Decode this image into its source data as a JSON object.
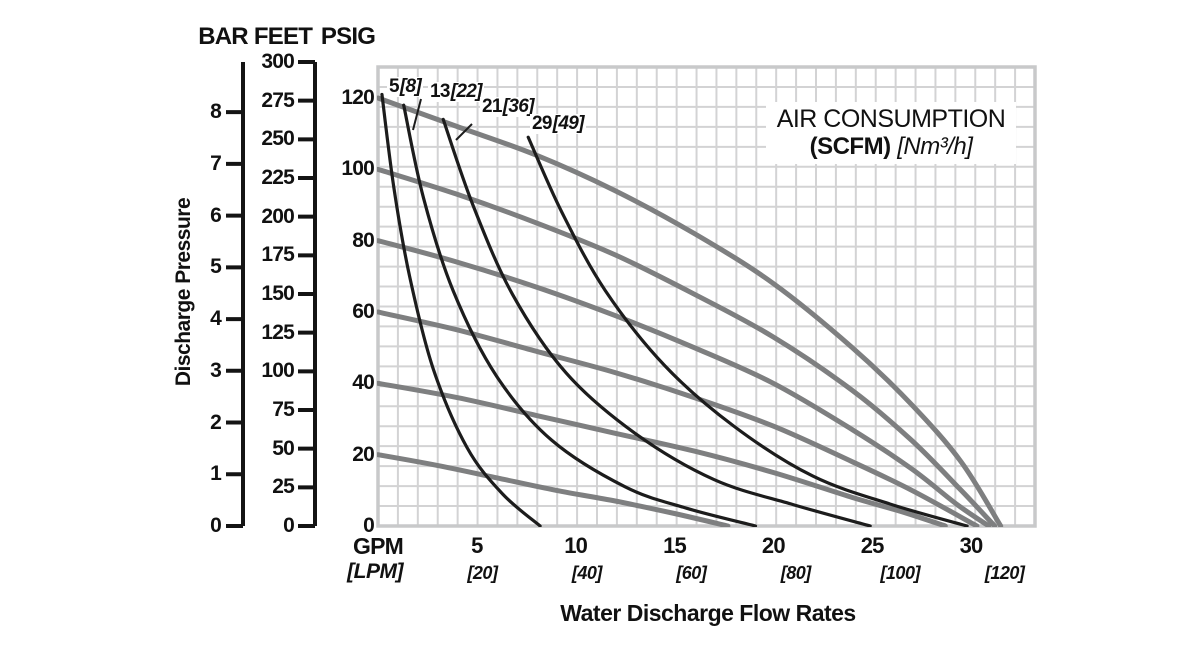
{
  "header": {
    "bar": "BAR",
    "feet": "FEET",
    "psig": "PSIG"
  },
  "labels": {
    "y_axis": "Discharge Pressure",
    "x_unit_primary": "GPM",
    "x_unit_secondary": "[LPM]",
    "x_title": "Water Discharge Flow Rates"
  },
  "annotation": {
    "line1": "AIR CONSUMPTION",
    "line2_bold": "(SCFM)",
    "line2_italic": "[Nm³/h]"
  },
  "colors": {
    "grid": "#d3d3d4",
    "plot_border": "#c8c9ca",
    "axis": "#141414",
    "water_curve": "#7e7f80",
    "air_curve": "#1c1c1c",
    "text": "#111111"
  },
  "chart_data": {
    "type": "line",
    "title": "Water Discharge Flow Rates",
    "xlabel": "GPM [LPM]",
    "ylabel": "Discharge Pressure",
    "x_axis": {
      "gpm_ticks": [
        5,
        10,
        15,
        20,
        25,
        30
      ],
      "lpm_ticks": [
        20,
        40,
        60,
        80,
        100,
        120
      ],
      "lpm_tick_labels": [
        "[20]",
        "[40]",
        "[60]",
        "[80]",
        "[100]",
        "[120]"
      ],
      "gpm_range": [
        0,
        33.2
      ]
    },
    "y_axes": {
      "psig": {
        "title": "PSIG",
        "ticks": [
          0,
          20,
          40,
          60,
          80,
          100,
          120
        ]
      },
      "feet": {
        "title": "FEET",
        "ticks": [
          0,
          25,
          50,
          75,
          100,
          125,
          150,
          175,
          200,
          225,
          250,
          275,
          300
        ]
      },
      "bar": {
        "title": "BAR",
        "ticks": [
          0,
          1,
          2,
          3,
          4,
          5,
          6,
          7,
          8
        ]
      }
    },
    "grid": {
      "visible": true,
      "cols": 33,
      "rows": 23
    },
    "legend_note": "Gray curves: discharge pressure vs flow; black curves: air consumption (SCFM [Nm3/h])",
    "series": [
      {
        "id": "p120",
        "name": "water-120-psig",
        "kind": "water",
        "points": [
          [
            0,
            120
          ],
          [
            4,
            112
          ],
          [
            8,
            104
          ],
          [
            12,
            94
          ],
          [
            16,
            82
          ],
          [
            20,
            68
          ],
          [
            24,
            50
          ],
          [
            27,
            34
          ],
          [
            29.5,
            18
          ],
          [
            31.5,
            0
          ]
        ]
      },
      {
        "id": "p100",
        "name": "water-100-psig",
        "kind": "water",
        "points": [
          [
            0,
            100
          ],
          [
            4,
            93
          ],
          [
            8,
            85
          ],
          [
            12,
            76
          ],
          [
            16,
            65
          ],
          [
            20,
            53
          ],
          [
            24,
            38
          ],
          [
            27,
            24
          ],
          [
            29.5,
            10
          ],
          [
            31.2,
            0
          ]
        ]
      },
      {
        "id": "p80",
        "name": "water-80-psig",
        "kind": "water",
        "points": [
          [
            0,
            80
          ],
          [
            4,
            74
          ],
          [
            8,
            67
          ],
          [
            12,
            59
          ],
          [
            16,
            50
          ],
          [
            20,
            40
          ],
          [
            24,
            27
          ],
          [
            27,
            16
          ],
          [
            29.3,
            6
          ],
          [
            30.9,
            0
          ]
        ]
      },
      {
        "id": "p60",
        "name": "water-60-psig",
        "kind": "water",
        "points": [
          [
            0,
            60
          ],
          [
            4,
            55
          ],
          [
            8,
            49
          ],
          [
            12,
            43
          ],
          [
            16,
            36
          ],
          [
            20,
            28
          ],
          [
            24,
            18
          ],
          [
            27,
            10
          ],
          [
            30.3,
            0
          ]
        ]
      },
      {
        "id": "p40",
        "name": "water-40-psig",
        "kind": "water",
        "points": [
          [
            0,
            40
          ],
          [
            4,
            36
          ],
          [
            8,
            31
          ],
          [
            12,
            26
          ],
          [
            16,
            21
          ],
          [
            20,
            15
          ],
          [
            24,
            8
          ],
          [
            26.5,
            4
          ],
          [
            28.7,
            0
          ]
        ]
      },
      {
        "id": "p20",
        "name": "water-20-psig",
        "kind": "water",
        "points": [
          [
            0,
            20
          ],
          [
            3,
            17
          ],
          [
            6,
            13.5
          ],
          [
            9,
            10
          ],
          [
            12,
            7
          ],
          [
            15,
            3.5
          ],
          [
            17.7,
            0
          ]
        ]
      },
      {
        "id": "a5",
        "name": "air-5-scfm",
        "kind": "air",
        "label_scfm": "5",
        "label_nm3": "[8]",
        "points": [
          [
            0.2,
            121
          ],
          [
            0.8,
            95
          ],
          [
            1.6,
            70
          ],
          [
            2.8,
            44
          ],
          [
            4.5,
            22
          ],
          [
            6.3,
            9
          ],
          [
            8.2,
            0
          ]
        ]
      },
      {
        "id": "a13",
        "name": "air-13-scfm",
        "kind": "air",
        "label_scfm": "13",
        "label_nm3": "[22]",
        "points": [
          [
            1.3,
            118
          ],
          [
            2.3,
            92
          ],
          [
            3.8,
            66
          ],
          [
            6,
            42
          ],
          [
            8.8,
            24
          ],
          [
            12.5,
            11
          ],
          [
            15.6,
            5
          ],
          [
            19.1,
            0
          ]
        ]
      },
      {
        "id": "a21",
        "name": "air-21-scfm",
        "kind": "air",
        "label_scfm": "21",
        "label_nm3": "[36]",
        "points": [
          [
            3.3,
            114
          ],
          [
            4.8,
            90
          ],
          [
            6.8,
            65
          ],
          [
            9.5,
            43
          ],
          [
            13,
            26
          ],
          [
            17,
            13
          ],
          [
            21,
            6
          ],
          [
            24.9,
            0
          ]
        ]
      },
      {
        "id": "a29",
        "name": "air-29-scfm",
        "kind": "air",
        "label_scfm": "29",
        "label_nm3": "[49]",
        "points": [
          [
            7.6,
            109
          ],
          [
            9.3,
            88
          ],
          [
            11.5,
            66
          ],
          [
            14.5,
            45
          ],
          [
            18,
            28
          ],
          [
            22,
            14
          ],
          [
            26,
            6
          ],
          [
            29.8,
            0
          ]
        ]
      }
    ]
  }
}
